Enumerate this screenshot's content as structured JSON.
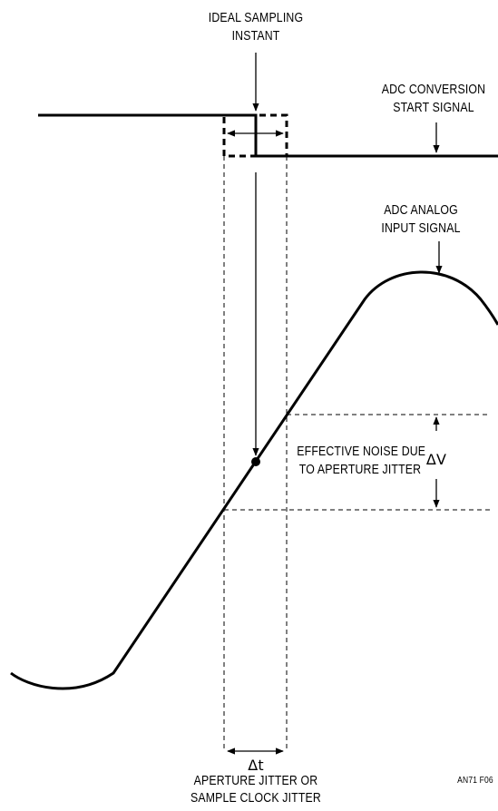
{
  "labels": {
    "ideal_sampling_line1": "IDEAL SAMPLING",
    "ideal_sampling_line2": "INSTANT",
    "adc_conversion_line1": "ADC CONVERSION",
    "adc_conversion_line2": "START SIGNAL",
    "adc_analog_line1": "ADC ANALOG",
    "adc_analog_line2": "INPUT SIGNAL",
    "effective_noise_line1": "EFFECTIVE NOISE DUE",
    "effective_noise_line2": "TO APERTURE JITTER",
    "delta_v": "ΔV",
    "delta_t": "Δt",
    "aperture_jitter_line1": "APERTURE JITTER OR",
    "aperture_jitter_line2": "SAMPLE CLOCK JITTER",
    "figure_id": "AN71 F06"
  }
}
